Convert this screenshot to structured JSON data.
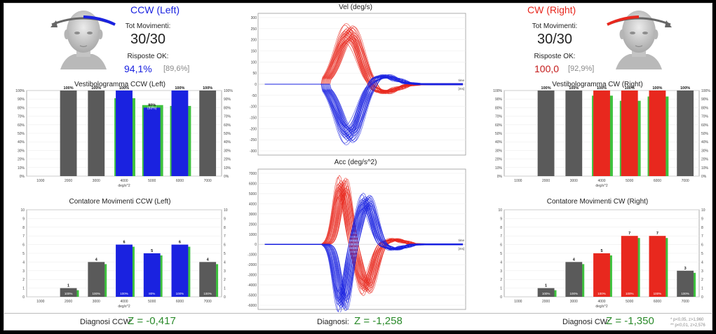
{
  "left": {
    "header": "CCW (Left)",
    "tot_label": "Tot Movimenti:",
    "tot_value": "30/30",
    "risposte_label": "Risposte OK:",
    "risposte_value": "94,1%",
    "risposte_secondary": "[89,6%]",
    "vestibologram_title": "Vestibologramma CCW (Left)",
    "counter_title": "Contatore Movimenti CCW (Left)",
    "diagnosis_label": "Diagnosi CCW:",
    "diagnosis_value": "Z = -0,417",
    "accent_color": "#1a22e0"
  },
  "right": {
    "header": "CW (Right)",
    "tot_label": "Tot Movimenti:",
    "tot_value": "30/30",
    "risposte_label": "Risposte OK:",
    "risposte_value": "100,0",
    "risposte_secondary": "[92,9%]",
    "vestibologram_title": "Vestibologramma CW (Right)",
    "counter_title": "Contatore Movimenti CW (Right)",
    "diagnosis_label": "Diagnosi CW:",
    "diagnosis_value": "Z = -1,350",
    "accent_color": "#e8281e"
  },
  "center": {
    "vel_title": "Vel (deg/s)",
    "acc_title": "Acc (deg/s^2)",
    "time_label": "time",
    "time_unit": "[ms]",
    "diagnosis_label": "Diagnosi:",
    "diagnosis_value": "Z = -1,258"
  },
  "footnote": {
    "line1": "* p<0,05, z>1,960",
    "line2": "** p<0,01, z>2,576"
  },
  "colors": {
    "gray": "#5a5a5a",
    "green": "#3ec23e",
    "blue": "#1a22e0",
    "red": "#e8281e",
    "z_green": "#2a8a2a"
  },
  "chart_data": [
    {
      "type": "bar",
      "title": "Vestibologramma CCW (Left)",
      "xlabel": "deg/s^2",
      "categories": [
        "1000",
        "2000",
        "3000",
        "4000",
        "5000",
        "6000",
        "7000"
      ],
      "y_ticks": [
        "0%",
        "10%",
        "20%",
        "30%",
        "40%",
        "50%",
        "60%",
        "70%",
        "80%",
        "90%",
        "100%"
      ],
      "ylim": [
        0,
        100
      ],
      "series": [
        {
          "values": [
            null,
            100,
            100,
            100,
            80,
            100,
            100
          ]
        },
        {
          "values": [
            null,
            null,
            null,
            91,
            83,
            82,
            null
          ]
        }
      ],
      "bar_colors": [
        "none",
        "gray",
        "gray",
        "blue",
        "blue",
        "blue",
        "gray"
      ],
      "top_labels": [
        "",
        "100%",
        "100%",
        "100%",
        "80%",
        "100%",
        "100%"
      ],
      "secondary_labels": [
        "",
        "",
        "",
        "",
        "(83%)",
        "",
        ""
      ]
    },
    {
      "type": "bar",
      "title": "Contatore Movimenti CCW (Left)",
      "xlabel": "deg/s^2",
      "categories": [
        "1000",
        "2000",
        "3000",
        "4000",
        "5000",
        "6000",
        "7000"
      ],
      "y_ticks": [
        "0",
        "1",
        "2",
        "3",
        "4",
        "5",
        "6",
        "7",
        "8",
        "9",
        "10"
      ],
      "ylim": [
        0,
        10
      ],
      "series": [
        {
          "values": [
            0,
            1,
            4,
            6,
            5,
            6,
            4
          ]
        }
      ],
      "bar_colors": [
        "none",
        "gray",
        "gray",
        "blue",
        "blue",
        "blue",
        "gray"
      ],
      "top_labels": [
        "",
        "1",
        "4",
        "6",
        "5",
        "6",
        "4"
      ],
      "bottom_labels": [
        "",
        "100%",
        "100%",
        "100%",
        "80%",
        "100%",
        "100%"
      ]
    },
    {
      "type": "bar",
      "title": "Vestibologramma CW (Right)",
      "xlabel": "deg/s^2",
      "categories": [
        "1000",
        "2000",
        "3000",
        "4000",
        "5000",
        "6000",
        "7000"
      ],
      "y_ticks": [
        "0%",
        "10%",
        "20%",
        "30%",
        "40%",
        "50%",
        "60%",
        "70%",
        "80%",
        "90%",
        "100%"
      ],
      "ylim": [
        0,
        100
      ],
      "series": [
        {
          "values": [
            null,
            100,
            100,
            100,
            100,
            100,
            100
          ]
        },
        {
          "values": [
            null,
            null,
            null,
            94,
            88,
            93,
            null
          ]
        }
      ],
      "bar_colors": [
        "none",
        "gray",
        "gray",
        "red",
        "red",
        "red",
        "gray"
      ],
      "top_labels": [
        "",
        "100%",
        "100%",
        "100%",
        "100%",
        "100%",
        "100%"
      ]
    },
    {
      "type": "bar",
      "title": "Contatore Movimenti CW (Right)",
      "xlabel": "deg/s^2",
      "categories": [
        "1000",
        "2000",
        "3000",
        "4000",
        "5000",
        "6000",
        "7000"
      ],
      "y_ticks": [
        "0",
        "1",
        "2",
        "3",
        "4",
        "5",
        "6",
        "7",
        "8",
        "9",
        "10"
      ],
      "ylim": [
        0,
        10
      ],
      "series": [
        {
          "values": [
            0,
            1,
            4,
            5,
            7,
            7,
            3
          ]
        }
      ],
      "bar_colors": [
        "none",
        "gray",
        "gray",
        "red",
        "red",
        "red",
        "gray"
      ],
      "top_labels": [
        "",
        "1",
        "4",
        "5",
        "7",
        "7",
        "3"
      ],
      "bottom_labels": [
        "",
        "100%",
        "100%",
        "100%",
        "100%",
        "100%",
        "100%"
      ]
    },
    {
      "type": "line",
      "title": "Vel (deg/s)",
      "y_ticks": [
        "300",
        "250",
        "200",
        "150",
        "100",
        "50",
        "0",
        "-50",
        "-100",
        "-150",
        "-200",
        "-250",
        "-300"
      ],
      "ylim": [
        -300,
        300
      ]
    },
    {
      "type": "line",
      "title": "Acc (deg/s^2)",
      "y_ticks": [
        "7000",
        "6000",
        "5000",
        "4000",
        "3000",
        "2000",
        "1000",
        "0",
        "-1000",
        "-2000",
        "-3000",
        "-4000",
        "-5000",
        "-6000"
      ],
      "ylim": [
        -6000,
        7000
      ]
    }
  ]
}
